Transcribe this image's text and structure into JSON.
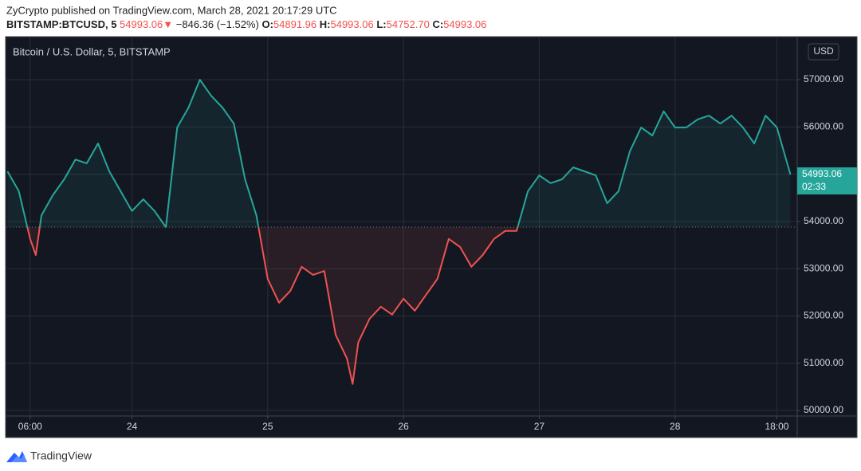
{
  "header": {
    "title": "ZyCrypto published on TradingView.com, March 28, 2021 20:17:29 UTC",
    "symbol": "BITSTAMP:BTCUSD, 5",
    "last": "54993.06",
    "arrow": "▼",
    "change": "−846.36 (−1.52%)",
    "ohlc": [
      {
        "label": "O:",
        "value": "54891.96"
      },
      {
        "label": "H:",
        "value": "54993.06"
      },
      {
        "label": "L:",
        "value": "54752.70"
      },
      {
        "label": "C:",
        "value": "54993.06"
      }
    ]
  },
  "chart_data": {
    "type": "line",
    "title": "Bitcoin / U.S. Dollar, 5, BITSTAMP",
    "currency": "USD",
    "countdown": "02:33",
    "x": [
      2,
      4,
      6,
      7,
      8,
      10,
      12,
      14,
      16,
      18,
      20,
      22,
      24,
      26,
      28,
      30,
      32,
      34,
      36,
      38,
      40,
      42,
      44,
      46,
      48,
      50,
      52,
      54,
      56,
      58,
      60,
      62,
      63,
      64,
      66,
      68,
      70,
      72,
      74,
      76,
      78,
      80,
      82,
      84,
      86,
      88,
      90,
      92,
      94,
      96,
      98,
      100,
      102,
      104,
      106,
      108,
      110,
      112,
      114,
      116,
      118,
      120,
      122,
      124,
      126,
      128,
      130,
      132,
      134,
      136,
      138,
      140.4
    ],
    "values": [
      55060,
      54640,
      53630,
      53290,
      54130,
      54555,
      54890,
      55310,
      55230,
      55650,
      55060,
      54640,
      54220,
      54470,
      54220,
      53880,
      55990,
      56410,
      57000,
      56660,
      56410,
      56070,
      54890,
      54130,
      52785,
      52280,
      52530,
      53040,
      52870,
      52950,
      51600,
      51100,
      50560,
      51440,
      51940,
      52195,
      52030,
      52365,
      52110,
      52450,
      52785,
      53630,
      53460,
      53040,
      53290,
      53630,
      53800,
      53800,
      54640,
      54975,
      54810,
      54890,
      55145,
      55060,
      54975,
      54385,
      54640,
      55480,
      55990,
      55820,
      56330,
      55990,
      55990,
      56160,
      56240,
      56070,
      56240,
      55990,
      55650,
      56240,
      55990,
      54993.06
    ],
    "baseline": 53880,
    "up_color": "#26a69a",
    "down_color": "#ef5350",
    "xlim": [
      1.8,
      141.6
    ],
    "xticks": [
      {
        "value": 6,
        "label": "06:00"
      },
      {
        "value": 24,
        "label": "24"
      },
      {
        "value": 48,
        "label": "25"
      },
      {
        "value": 72,
        "label": "26"
      },
      {
        "value": 96,
        "label": "27"
      },
      {
        "value": 120,
        "label": "28"
      },
      {
        "value": 138,
        "label": "18:00"
      }
    ],
    "ylim": [
      49882,
      57894
    ],
    "yticks": [
      {
        "value": 50000,
        "label": "50000.00"
      },
      {
        "value": 51000,
        "label": "51000.00"
      },
      {
        "value": 52000,
        "label": "52000.00"
      },
      {
        "value": 53000,
        "label": "53000.00"
      },
      {
        "value": 54000,
        "label": "54000.00"
      },
      {
        "value": 55000,
        "label": "55000.00"
      },
      {
        "value": 56000,
        "label": "56000.00"
      },
      {
        "value": 57000,
        "label": "57000.00"
      }
    ],
    "grid": true
  },
  "footer": {
    "brand": "TradingView"
  }
}
